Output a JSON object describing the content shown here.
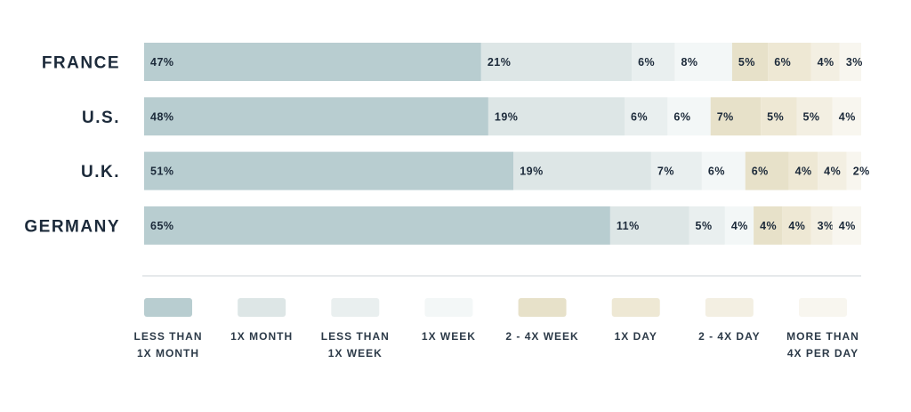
{
  "chart_data": {
    "type": "bar",
    "orientation": "horizontal",
    "stacked": true,
    "normalized": true,
    "categories": [
      "FRANCE",
      "U.S.",
      "U.K.",
      "GERMANY"
    ],
    "series": [
      {
        "name": "LESS THAN 1X MONTH",
        "legend_lines": [
          "LESS THAN",
          "1X MONTH"
        ],
        "color": "#b8cdd0",
        "values": [
          47,
          48,
          51,
          65
        ]
      },
      {
        "name": "1X MONTH",
        "legend_lines": [
          "1X MONTH"
        ],
        "color": "#dde6e6",
        "values": [
          21,
          19,
          19,
          11
        ]
      },
      {
        "name": "LESS THAN 1X WEEK",
        "legend_lines": [
          "LESS THAN",
          "1X WEEK"
        ],
        "color": "#e9efef",
        "values": [
          6,
          6,
          7,
          5
        ]
      },
      {
        "name": "1X WEEK",
        "legend_lines": [
          "1X WEEK"
        ],
        "color": "#f3f7f7",
        "values": [
          8,
          6,
          6,
          4
        ]
      },
      {
        "name": "2 - 4X WEEK",
        "legend_lines": [
          "2 - 4X WEEK"
        ],
        "color": "#e7e1c9",
        "values": [
          5,
          7,
          6,
          4
        ]
      },
      {
        "name": "1X DAY",
        "legend_lines": [
          "1X DAY"
        ],
        "color": "#eee8d4",
        "values": [
          6,
          5,
          4,
          4
        ]
      },
      {
        "name": "2 - 4X DAY",
        "legend_lines": [
          "2 - 4X DAY"
        ],
        "color": "#f3efe2",
        "values": [
          4,
          5,
          4,
          3
        ]
      },
      {
        "name": "MORE THAN 4X PER DAY",
        "legend_lines": [
          "MORE THAN",
          "4X PER DAY"
        ],
        "color": "#f8f6ef",
        "values": [
          3,
          4,
          2,
          4
        ]
      }
    ],
    "value_suffix": "%",
    "legend_position": "bottom",
    "grid": false
  }
}
